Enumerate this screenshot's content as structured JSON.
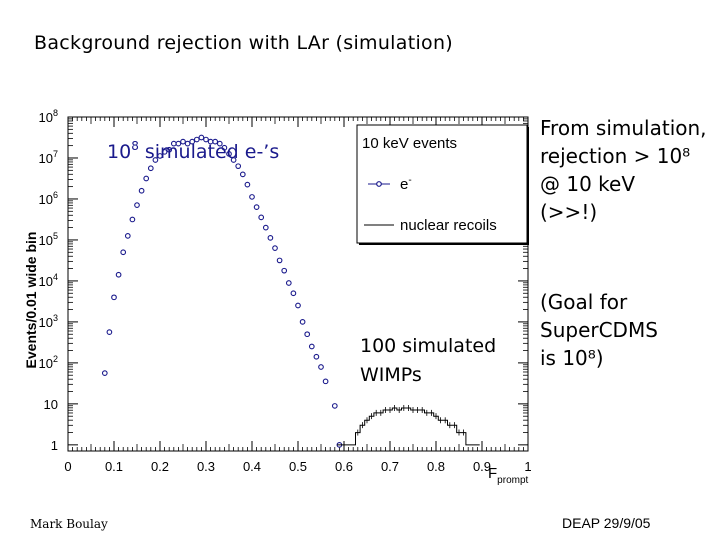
{
  "slide": {
    "title": "Background rejection with LAr (simulation)",
    "sim_note": "From simulation,\nrejection > 10⁸\n@ 10 keV\n(>>!)",
    "goal_note": "(Goal for\nSuperCDMS\nis 10⁸)",
    "author": "Mark Boulay",
    "footer": "DEAP 29/9/05"
  },
  "chart_data": {
    "type": "scatter",
    "title": "",
    "xlabel": "F",
    "xlabel_sub": "prompt",
    "ylabel": "Events/0.01 wide bin",
    "xlim": [
      0,
      1
    ],
    "ylim_log10": [
      -0.15,
      8
    ],
    "yscale": "log",
    "x_ticks": [
      "0",
      "0.1",
      "0.2",
      "0.3",
      "0.4",
      "0.5",
      "0.6",
      "0.7",
      "0.8",
      "0.9",
      "1"
    ],
    "y_ticks": [
      {
        "base": "1",
        "exp": ""
      },
      {
        "base": "10",
        "exp": ""
      },
      {
        "base": "10",
        "exp": "2"
      },
      {
        "base": "10",
        "exp": "3"
      },
      {
        "base": "10",
        "exp": "4"
      },
      {
        "base": "10",
        "exp": "5"
      },
      {
        "base": "10",
        "exp": "6"
      },
      {
        "base": "10",
        "exp": "7"
      },
      {
        "base": "10",
        "exp": "8"
      }
    ],
    "annotations": {
      "electrons": {
        "base": "10",
        "exp": "8",
        "text": " simulated e-’s"
      },
      "wimps_line1": "100 simulated",
      "wimps_line2": "WIMPs"
    },
    "legend": {
      "title": "10 keV  events",
      "position": "top-right",
      "entries": [
        {
          "label": "e",
          "sup": "-",
          "style": "markers"
        },
        {
          "label": "nuclear recoils",
          "style": "line"
        }
      ]
    },
    "series": [
      {
        "name": "e-",
        "style": "markers",
        "color": "#1a1a8c",
        "points": [
          {
            "x": 0.08,
            "log10y": 1.75
          },
          {
            "x": 0.09,
            "log10y": 2.75
          },
          {
            "x": 0.1,
            "log10y": 3.6
          },
          {
            "x": 0.11,
            "log10y": 4.15
          },
          {
            "x": 0.12,
            "log10y": 4.7
          },
          {
            "x": 0.13,
            "log10y": 5.1
          },
          {
            "x": 0.14,
            "log10y": 5.5
          },
          {
            "x": 0.15,
            "log10y": 5.85
          },
          {
            "x": 0.16,
            "log10y": 6.2
          },
          {
            "x": 0.17,
            "log10y": 6.5
          },
          {
            "x": 0.18,
            "log10y": 6.75
          },
          {
            "x": 0.19,
            "log10y": 6.95
          },
          {
            "x": 0.2,
            "log10y": 7.05
          },
          {
            "x": 0.21,
            "log10y": 7.15
          },
          {
            "x": 0.22,
            "log10y": 7.2
          },
          {
            "x": 0.23,
            "log10y": 7.35
          },
          {
            "x": 0.24,
            "log10y": 7.35
          },
          {
            "x": 0.25,
            "log10y": 7.4
          },
          {
            "x": 0.26,
            "log10y": 7.35
          },
          {
            "x": 0.27,
            "log10y": 7.4
          },
          {
            "x": 0.28,
            "log10y": 7.45
          },
          {
            "x": 0.29,
            "log10y": 7.5
          },
          {
            "x": 0.3,
            "log10y": 7.45
          },
          {
            "x": 0.31,
            "log10y": 7.4
          },
          {
            "x": 0.32,
            "log10y": 7.4
          },
          {
            "x": 0.33,
            "log10y": 7.35
          },
          {
            "x": 0.34,
            "log10y": 7.25
          },
          {
            "x": 0.35,
            "log10y": 7.1
          },
          {
            "x": 0.36,
            "log10y": 6.95
          },
          {
            "x": 0.37,
            "log10y": 6.8
          },
          {
            "x": 0.38,
            "log10y": 6.6
          },
          {
            "x": 0.39,
            "log10y": 6.35
          },
          {
            "x": 0.4,
            "log10y": 6.05
          },
          {
            "x": 0.41,
            "log10y": 5.8
          },
          {
            "x": 0.42,
            "log10y": 5.55
          },
          {
            "x": 0.43,
            "log10y": 5.3
          },
          {
            "x": 0.44,
            "log10y": 5.05
          },
          {
            "x": 0.45,
            "log10y": 4.8
          },
          {
            "x": 0.46,
            "log10y": 4.5
          },
          {
            "x": 0.47,
            "log10y": 4.25
          },
          {
            "x": 0.48,
            "log10y": 3.95
          },
          {
            "x": 0.49,
            "log10y": 3.7
          },
          {
            "x": 0.5,
            "log10y": 3.4
          },
          {
            "x": 0.51,
            "log10y": 3.0
          },
          {
            "x": 0.52,
            "log10y": 2.7
          },
          {
            "x": 0.53,
            "log10y": 2.4
          },
          {
            "x": 0.54,
            "log10y": 2.15
          },
          {
            "x": 0.55,
            "log10y": 1.9
          },
          {
            "x": 0.56,
            "log10y": 1.55
          },
          {
            "x": 0.58,
            "log10y": 0.95
          },
          {
            "x": 0.59,
            "log10y": 0.0
          }
        ]
      },
      {
        "name": "nuclear recoils",
        "style": "step",
        "color": "#000000",
        "points": [
          {
            "x": 0.59,
            "log10y": 0.0
          },
          {
            "x": 0.6,
            "log10y": 0.0
          },
          {
            "x": 0.61,
            "log10y": 0.0
          },
          {
            "x": 0.62,
            "log10y": 0.0
          },
          {
            "x": 0.63,
            "log10y": 0.3
          },
          {
            "x": 0.64,
            "log10y": 0.48
          },
          {
            "x": 0.65,
            "log10y": 0.6
          },
          {
            "x": 0.66,
            "log10y": 0.7
          },
          {
            "x": 0.67,
            "log10y": 0.78
          },
          {
            "x": 0.68,
            "log10y": 0.78
          },
          {
            "x": 0.69,
            "log10y": 0.85
          },
          {
            "x": 0.7,
            "log10y": 0.85
          },
          {
            "x": 0.71,
            "log10y": 0.9
          },
          {
            "x": 0.72,
            "log10y": 0.85
          },
          {
            "x": 0.73,
            "log10y": 0.9
          },
          {
            "x": 0.74,
            "log10y": 0.9
          },
          {
            "x": 0.75,
            "log10y": 0.85
          },
          {
            "x": 0.76,
            "log10y": 0.85
          },
          {
            "x": 0.77,
            "log10y": 0.85
          },
          {
            "x": 0.78,
            "log10y": 0.78
          },
          {
            "x": 0.79,
            "log10y": 0.78
          },
          {
            "x": 0.8,
            "log10y": 0.7
          },
          {
            "x": 0.81,
            "log10y": 0.6
          },
          {
            "x": 0.82,
            "log10y": 0.6
          },
          {
            "x": 0.83,
            "log10y": 0.48
          },
          {
            "x": 0.84,
            "log10y": 0.48
          },
          {
            "x": 0.85,
            "log10y": 0.3
          },
          {
            "x": 0.86,
            "log10y": 0.3
          },
          {
            "x": 0.87,
            "log10y": 0.0
          },
          {
            "x": 0.88,
            "log10y": 0.0
          },
          {
            "x": 0.89,
            "log10y": 0.0
          }
        ]
      }
    ]
  }
}
